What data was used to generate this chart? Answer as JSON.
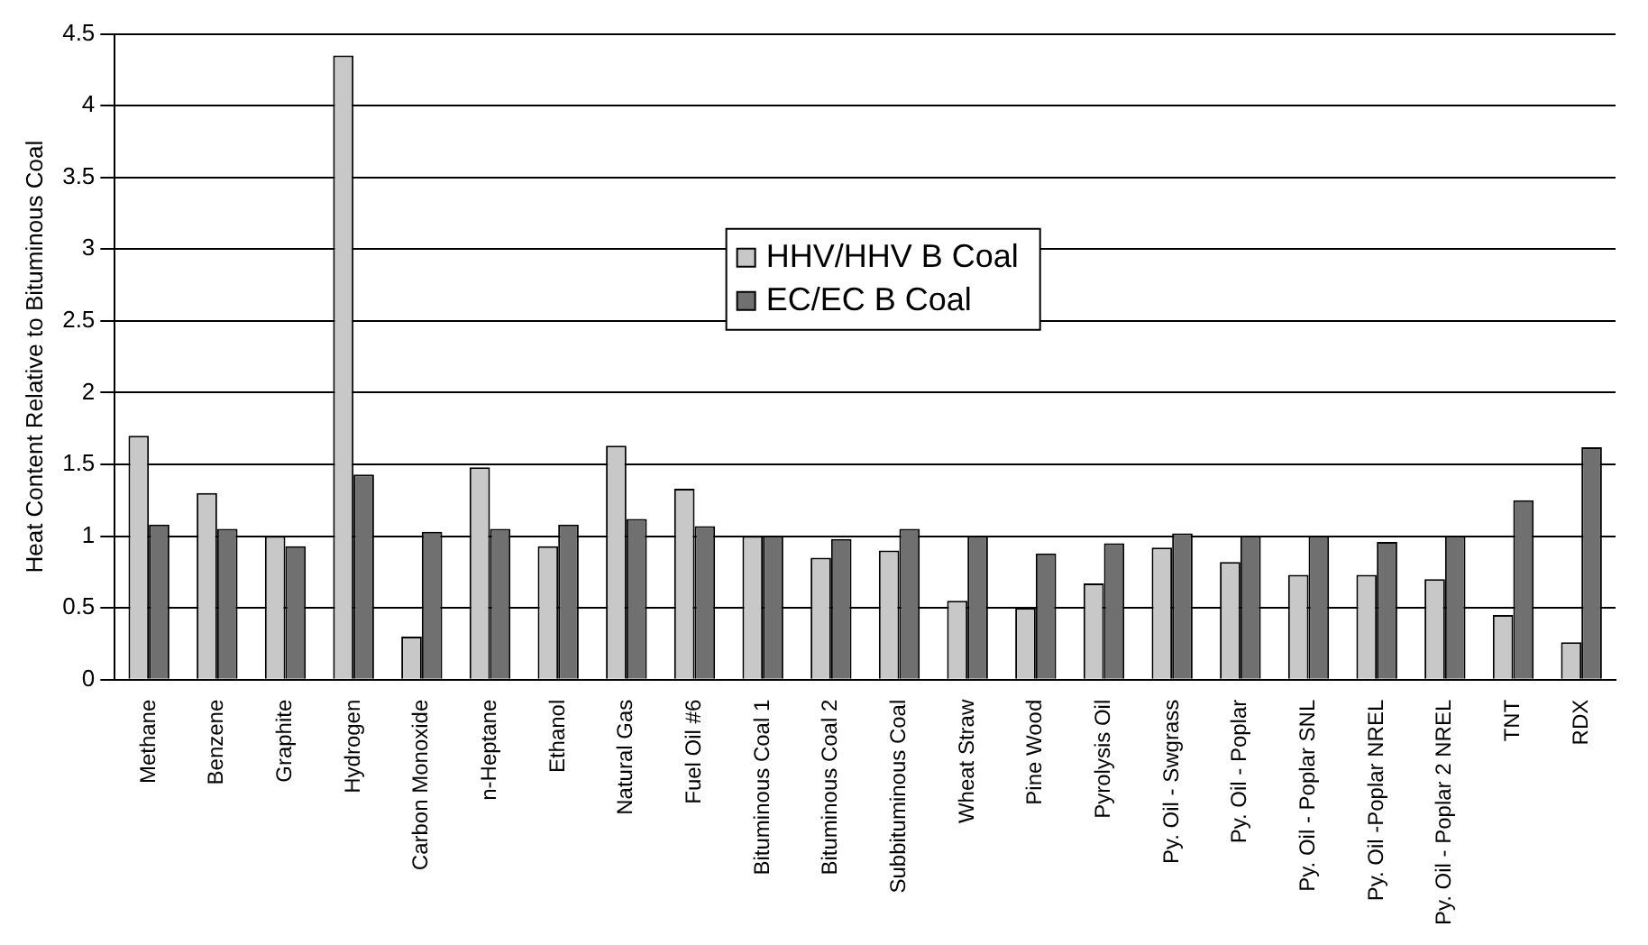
{
  "chart_data": {
    "type": "bar",
    "ylabel": "Heat Content Relative to Bituminous Coal",
    "categories": [
      "Methane",
      "Benzene",
      "Graphite",
      "Hydrogen",
      "Carbon Monoxide",
      "n-Heptane",
      "Ethanol",
      "Natural Gas",
      "Fuel Oil #6",
      "Bituminous Coal 1",
      "Bituminous Coal 2",
      "Subbituminous Coal",
      "Wheat Straw",
      "Pine Wood",
      "Pyrolysis Oil",
      "Py. Oil - Swgrass",
      "Py. Oil - Poplar",
      "Py. Oil - Poplar SNL",
      "Py. Oil -Poplar NREL",
      "Py. Oil - Poplar 2 NREL",
      "TNT",
      "RDX"
    ],
    "series": [
      {
        "name": "HHV/HHV B Coal",
        "color": "#c8c8c8",
        "values": [
          1.7,
          1.3,
          1.0,
          4.35,
          0.3,
          1.48,
          0.93,
          1.63,
          1.33,
          1.0,
          0.85,
          0.9,
          0.55,
          0.5,
          0.67,
          0.92,
          0.82,
          0.73,
          0.73,
          0.7,
          0.45,
          0.26
        ]
      },
      {
        "name": "EC/EC B Coal",
        "color": "#707070",
        "values": [
          1.08,
          1.05,
          0.93,
          1.43,
          1.03,
          1.05,
          1.08,
          1.12,
          1.07,
          1.0,
          0.98,
          1.05,
          1.0,
          0.88,
          0.95,
          1.02,
          1.0,
          1.0,
          0.96,
          1.0,
          1.25,
          1.62
        ]
      }
    ],
    "ylim": [
      0,
      4.5
    ],
    "yticks": [
      0,
      0.5,
      1,
      1.5,
      2,
      2.5,
      3,
      3.5,
      4,
      4.5
    ],
    "grid": "y",
    "legend": "center"
  }
}
